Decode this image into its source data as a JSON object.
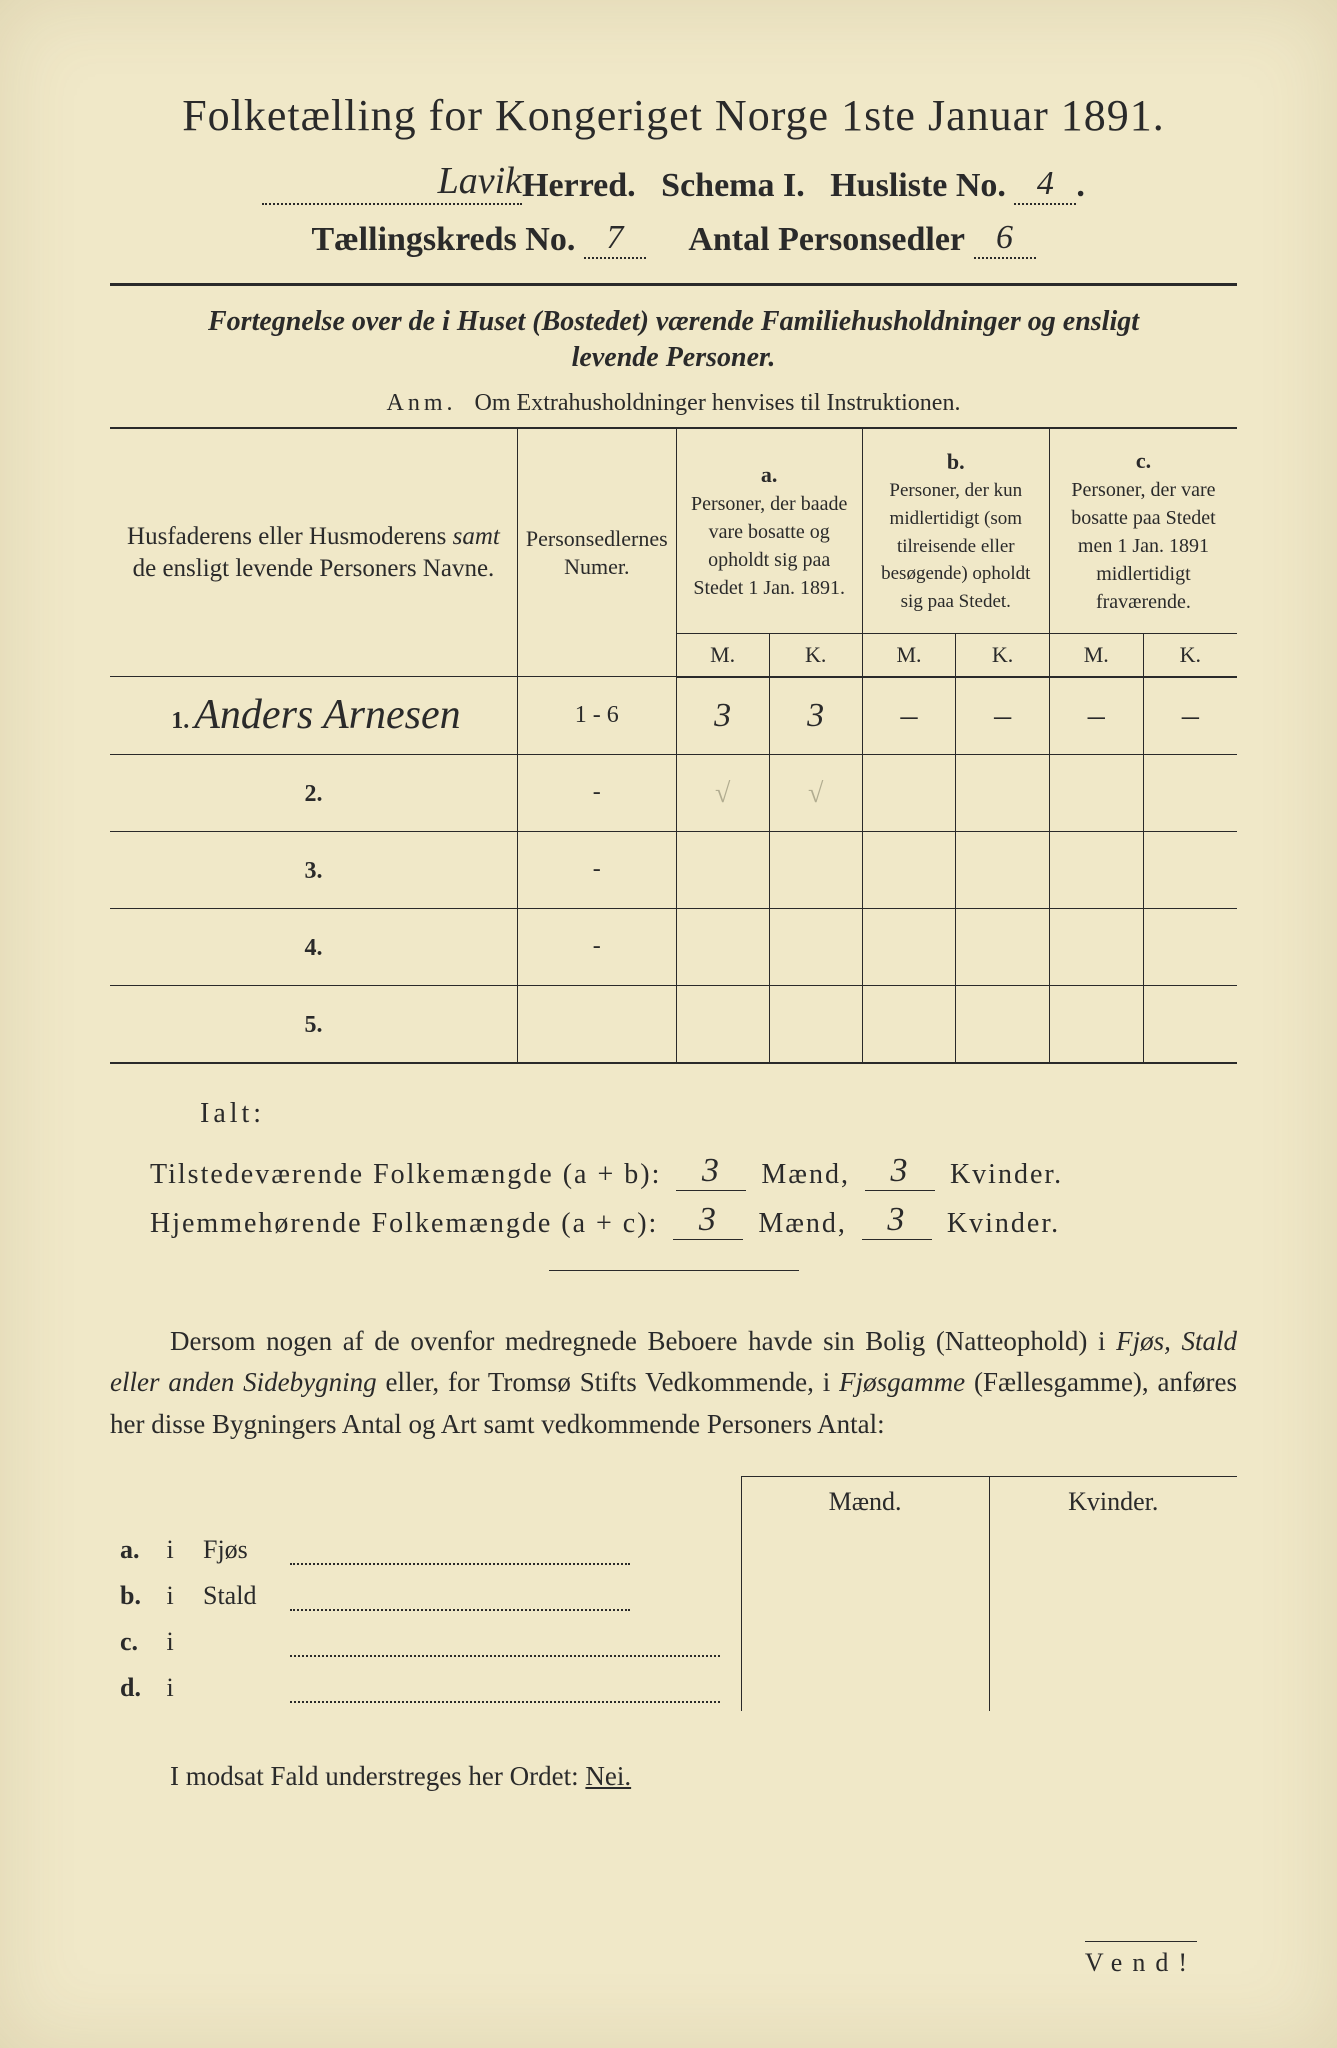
{
  "title": "Folketælling for Kongeriget Norge 1ste Januar 1891.",
  "header": {
    "herred_handwritten": "Lavik",
    "herred_label": "Herred.",
    "schema_label": "Schema I.",
    "husliste_label": "Husliste No.",
    "husliste_no": "4",
    "kreds_label": "Tællingskreds No.",
    "kreds_no": "7",
    "antal_label": "Antal Personsedler",
    "antal_no": "6"
  },
  "subtitle_line1": "Fortegnelse over de i Huset (Bostedet) værende Familiehusholdninger og ensligt",
  "subtitle_line2": "levende Personer.",
  "anm_prefix": "Anm.",
  "anm_text": "Om Extrahusholdninger henvises til Instruktionen.",
  "table": {
    "col_name": "Husfaderens eller Husmoderens samt de ensligt levende Personers Navne.",
    "col_num": "Personsedlernes Numer.",
    "col_a_label": "a.",
    "col_a": "Personer, der baade vare bosatte og opholdt sig paa Stedet 1 Jan. 1891.",
    "col_b_label": "b.",
    "col_b": "Personer, der kun midlertidigt (som tilreisende eller besøgende) opholdt sig paa Stedet.",
    "col_c_label": "c.",
    "col_c": "Personer, der vare bosatte paa Stedet men 1 Jan. 1891 midlertidigt fraværende.",
    "M": "M.",
    "K": "K.",
    "rows": [
      {
        "n": "1.",
        "name": "Anders Arnesen",
        "num": "1 - 6",
        "a_m": "3",
        "a_k": "3",
        "b_m": "–",
        "b_k": "–",
        "c_m": "–",
        "c_k": "–"
      },
      {
        "n": "2.",
        "name": "",
        "num": "-",
        "a_m": "√",
        "a_k": "√",
        "b_m": "",
        "b_k": "",
        "c_m": "",
        "c_k": ""
      },
      {
        "n": "3.",
        "name": "",
        "num": "-",
        "a_m": "",
        "a_k": "",
        "b_m": "",
        "b_k": "",
        "c_m": "",
        "c_k": ""
      },
      {
        "n": "4.",
        "name": "",
        "num": "-",
        "a_m": "",
        "a_k": "",
        "b_m": "",
        "b_k": "",
        "c_m": "",
        "c_k": ""
      },
      {
        "n": "5.",
        "name": "",
        "num": "",
        "a_m": "",
        "a_k": "",
        "b_m": "",
        "b_k": "",
        "c_m": "",
        "c_k": ""
      }
    ]
  },
  "ialt": "Ialt:",
  "sum1_label": "Tilstedeværende Folkemængde (a + b):",
  "sum2_label": "Hjemmehørende Folkemængde (a + c):",
  "maend": "Mænd,",
  "kvinder": "Kvinder.",
  "sum1_m": "3",
  "sum1_k": "3",
  "sum2_m": "3",
  "sum2_k": "3",
  "paragraph": "Dersom nogen af de ovenfor medregnede Beboere havde sin Bolig (Natteophold) i Fjøs, Stald eller anden Sidebygning eller, for Tromsø Stifts Vedkommende, i Fjøsgamme (Fællesgamme), anføres her disse Bygningers Antal og Art samt vedkommende Personers Antal:",
  "building_headers": {
    "m": "Mænd.",
    "k": "Kvinder."
  },
  "buildings": [
    {
      "label": "a.",
      "i": "i",
      "name": "Fjøs"
    },
    {
      "label": "b.",
      "i": "i",
      "name": "Stald"
    },
    {
      "label": "c.",
      "i": "i",
      "name": ""
    },
    {
      "label": "d.",
      "i": "i",
      "name": ""
    }
  ],
  "footer": "I modsat Fald understreges her Ordet:",
  "nei": "Nei.",
  "vend": "Vend!"
}
